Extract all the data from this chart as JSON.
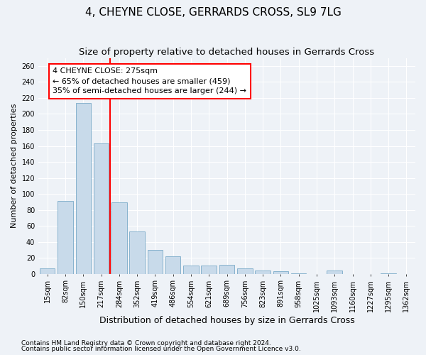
{
  "title": "4, CHEYNE CLOSE, GERRARDS CROSS, SL9 7LG",
  "subtitle": "Size of property relative to detached houses in Gerrards Cross",
  "xlabel": "Distribution of detached houses by size in Gerrards Cross",
  "ylabel": "Number of detached properties",
  "categories": [
    "15sqm",
    "82sqm",
    "150sqm",
    "217sqm",
    "284sqm",
    "352sqm",
    "419sqm",
    "486sqm",
    "554sqm",
    "621sqm",
    "689sqm",
    "756sqm",
    "823sqm",
    "891sqm",
    "958sqm",
    "1025sqm",
    "1093sqm",
    "1160sqm",
    "1227sqm",
    "1295sqm",
    "1362sqm"
  ],
  "values": [
    7,
    91,
    214,
    163,
    89,
    53,
    30,
    22,
    10,
    10,
    11,
    7,
    4,
    3,
    1,
    0,
    4,
    0,
    0,
    1,
    0
  ],
  "bar_color": "#c8daea",
  "bar_edge_color": "#7aaac8",
  "annotation_text": "4 CHEYNE CLOSE: 275sqm\n← 65% of detached houses are smaller (459)\n35% of semi-detached houses are larger (244) →",
  "annotation_box_facecolor": "white",
  "annotation_box_edgecolor": "red",
  "vline_color": "red",
  "ylim": [
    0,
    270
  ],
  "yticks": [
    0,
    20,
    40,
    60,
    80,
    100,
    120,
    140,
    160,
    180,
    200,
    220,
    240,
    260
  ],
  "footnote1": "Contains HM Land Registry data © Crown copyright and database right 2024.",
  "footnote2": "Contains public sector information licensed under the Open Government Licence v3.0.",
  "background_color": "#eef2f7",
  "grid_color": "white",
  "title_fontsize": 11,
  "subtitle_fontsize": 9.5,
  "xlabel_fontsize": 9,
  "ylabel_fontsize": 8,
  "tick_fontsize": 7,
  "annotation_fontsize": 8,
  "footnote_fontsize": 6.5,
  "vline_x": 3.5
}
